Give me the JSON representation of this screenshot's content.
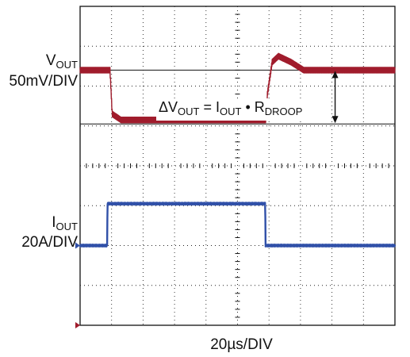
{
  "chart_data": {
    "type": "line",
    "xlabel": "20µs/DIV",
    "x_unit_per_div": "20µs",
    "divisions": {
      "x": 10,
      "y": 8
    },
    "grid": true,
    "series": [
      {
        "name": "VOUT",
        "scale": "50mV/DIV",
        "color": "#a01c2c",
        "ground_marker_div": 8,
        "x_div": [
          0,
          0.85,
          0.95,
          1.02,
          1.3,
          2,
          4,
          5.9,
          5.95,
          6.1,
          6.3,
          6.7,
          7.1,
          8,
          10
        ],
        "y_div": [
          1.6,
          1.6,
          1.6,
          2.7,
          2.85,
          2.85,
          2.85,
          2.85,
          2.2,
          1.4,
          1.25,
          1.4,
          1.6,
          1.6,
          1.6
        ]
      },
      {
        "name": "IOUT",
        "scale": "20A/DIV",
        "color": "#3050a8",
        "ground_marker_div": 6,
        "x_div": [
          0,
          0.86,
          0.87,
          2,
          4,
          5.88,
          5.89,
          10
        ],
        "y_div": [
          6,
          6,
          4.95,
          4.95,
          4.95,
          4.95,
          6,
          6
        ]
      }
    ],
    "annotation": {
      "text": "ΔVOUT = IOUT • RDROOP"
    },
    "reference_lines_div": [
      1.6,
      2.95
    ]
  },
  "labels": {
    "vout_main": "V",
    "vout_sub": "OUT",
    "vout_scale": "50mV/DIV",
    "iout_main": "I",
    "iout_sub": "OUT",
    "iout_scale": "20A/DIV",
    "x_scale": "20µs/DIV",
    "ann_delta": "ΔV",
    "ann_sub1": "OUT",
    "ann_eq": " = I",
    "ann_sub2": "OUT",
    "ann_dot": " • R",
    "ann_sub3": "DROOP"
  }
}
